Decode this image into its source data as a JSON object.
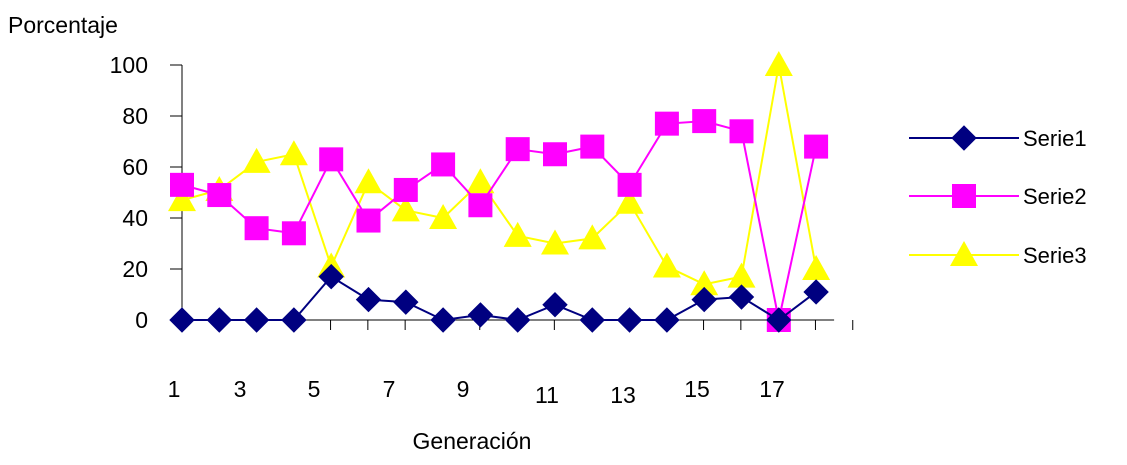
{
  "chart_data": {
    "type": "line",
    "ylabel": "Porcentaje",
    "xlabel": "Generación",
    "ylim": [
      0,
      100
    ],
    "yticks": [
      0,
      20,
      40,
      60,
      80,
      100
    ],
    "x": [
      1,
      2,
      3,
      4,
      5,
      6,
      7,
      8,
      9,
      10,
      11,
      12,
      13,
      14,
      15,
      16,
      17,
      18
    ],
    "xtick_labels": [
      "1",
      "3",
      "5",
      "7",
      "9",
      "11",
      "13",
      "15",
      "17"
    ],
    "legend_position": "right",
    "grid": false,
    "series": [
      {
        "name": "Serie1",
        "color": "#000080",
        "marker": "diamond",
        "values": [
          0,
          0,
          0,
          0,
          17,
          8,
          7,
          0,
          2,
          0,
          6,
          0,
          0,
          0,
          8,
          9,
          0,
          11
        ]
      },
      {
        "name": "Serie2",
        "color": "#ff00ff",
        "marker": "square",
        "values": [
          53,
          49,
          36,
          34,
          63,
          39,
          51,
          61,
          45,
          67,
          65,
          68,
          53,
          77,
          78,
          74,
          0,
          68
        ]
      },
      {
        "name": "Serie3",
        "color": "#ffff00",
        "marker": "triangle",
        "values": [
          47,
          51,
          62,
          65,
          21,
          54,
          43,
          40,
          54,
          33,
          30,
          32,
          46,
          21,
          14,
          17,
          100,
          20
        ]
      }
    ]
  }
}
